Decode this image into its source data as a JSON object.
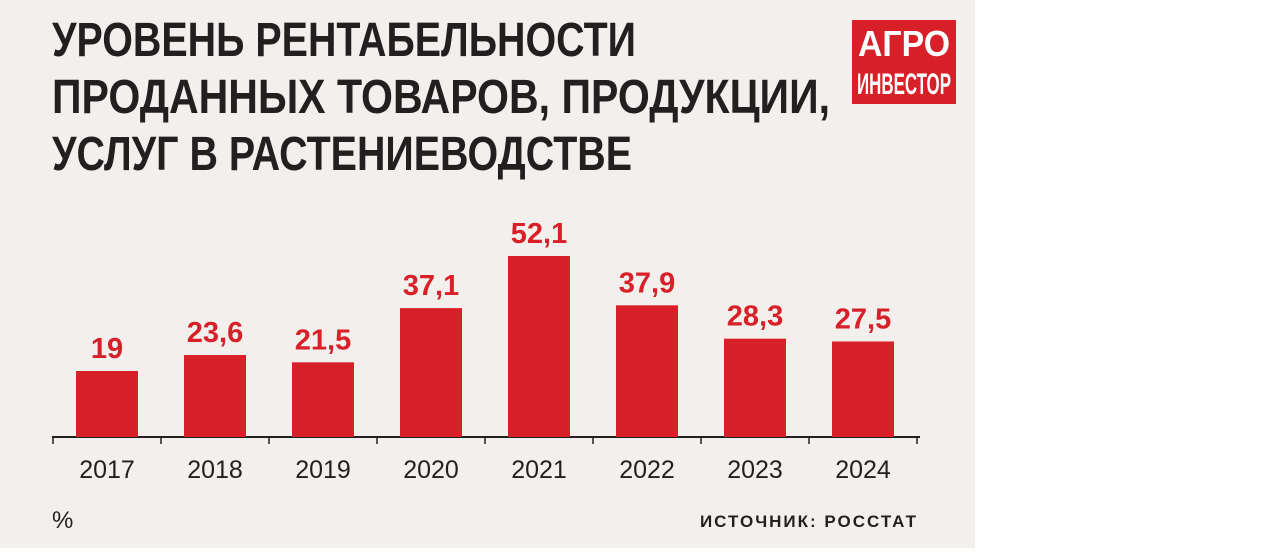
{
  "chart_data": {
    "type": "bar",
    "title": [
      "УРОВЕНЬ РЕНТАБЕЛЬНОСТИ",
      "ПРОДАННЫХ ТОВАРОВ, ПРОДУКЦИИ,",
      "УСЛУГ В РАСТЕНИЕВОДСТВЕ"
    ],
    "logo": [
      "АГРО",
      "ИНВЕСТОР"
    ],
    "categories": [
      "2017",
      "2018",
      "2019",
      "2020",
      "2021",
      "2022",
      "2023",
      "2024"
    ],
    "values": [
      19,
      23.6,
      21.5,
      37.1,
      52.1,
      37.9,
      28.3,
      27.5
    ],
    "value_labels": [
      "19",
      "23,6",
      "21,5",
      "37,1",
      "52,1",
      "37,9",
      "28,3",
      "27,5"
    ],
    "color": "#d72027",
    "unit": "%",
    "source": "ИСТОЧНИК: РОССТАТ"
  }
}
